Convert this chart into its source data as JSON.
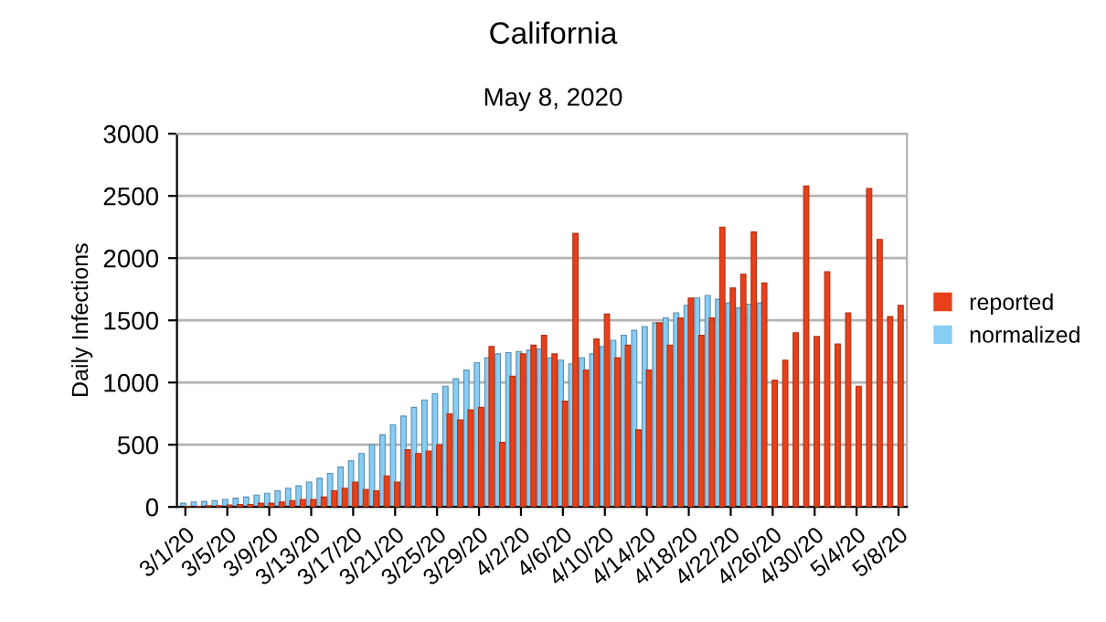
{
  "chart_data": {
    "type": "bar",
    "title": "California",
    "subtitle": "May 8, 2020",
    "ylabel": "Daily Infections",
    "categories": [
      "3/1/20",
      null,
      null,
      null,
      "3/5/20",
      null,
      null,
      null,
      "3/9/20",
      null,
      null,
      null,
      "3/13/20",
      null,
      null,
      null,
      "3/17/20",
      null,
      null,
      null,
      "3/21/20",
      null,
      null,
      null,
      "3/25/20",
      null,
      null,
      null,
      "3/29/20",
      null,
      null,
      null,
      "4/2/20",
      null,
      null,
      null,
      "4/6/20",
      null,
      null,
      null,
      "4/10/20",
      null,
      null,
      null,
      "4/14/20",
      null,
      null,
      null,
      "4/18/20",
      null,
      null,
      null,
      "4/22/20",
      null,
      null,
      null,
      "4/26/20",
      null,
      null,
      null,
      "4/30/20",
      null,
      null,
      null,
      "5/4/20",
      null,
      null,
      null,
      "5/8/20"
    ],
    "series": [
      {
        "name": "normalized",
        "color": "#87cdf5",
        "values": [
          30,
          40,
          45,
          50,
          60,
          70,
          80,
          95,
          110,
          130,
          150,
          170,
          200,
          230,
          270,
          320,
          370,
          430,
          500,
          580,
          660,
          730,
          800,
          860,
          910,
          970,
          1030,
          1100,
          1160,
          1200,
          1230,
          1240,
          1250,
          1260,
          1270,
          1200,
          1180,
          1150,
          1200,
          1230,
          1290,
          1340,
          1380,
          1420,
          1450,
          1480,
          1520,
          1560,
          1620,
          1680,
          1700,
          1670,
          1640,
          1600,
          1630,
          1640,
          null,
          null,
          null,
          null,
          null,
          null,
          null,
          null,
          null,
          null,
          null,
          null,
          null
        ]
      },
      {
        "name": "reported",
        "color": "#e8401a",
        "values": [
          5,
          5,
          10,
          10,
          15,
          20,
          20,
          30,
          30,
          40,
          50,
          60,
          60,
          80,
          130,
          150,
          200,
          140,
          130,
          250,
          200,
          460,
          430,
          450,
          500,
          750,
          700,
          780,
          800,
          1290,
          520,
          1050,
          1230,
          1300,
          1380,
          1230,
          850,
          2200,
          1100,
          1350,
          1550,
          1200,
          1300,
          620,
          1100,
          1480,
          1300,
          1520,
          1680,
          1380,
          1520,
          2250,
          1760,
          1870,
          2210,
          1800,
          1020,
          1180,
          1400,
          2580,
          1370,
          1890,
          1310,
          1560,
          970,
          2560,
          2150,
          1530,
          1620
        ]
      }
    ],
    "ylim": [
      0,
      3000
    ],
    "yticks": [
      0,
      500,
      1000,
      1500,
      2000,
      2500,
      3000
    ],
    "grid": "y",
    "legend": "right"
  }
}
